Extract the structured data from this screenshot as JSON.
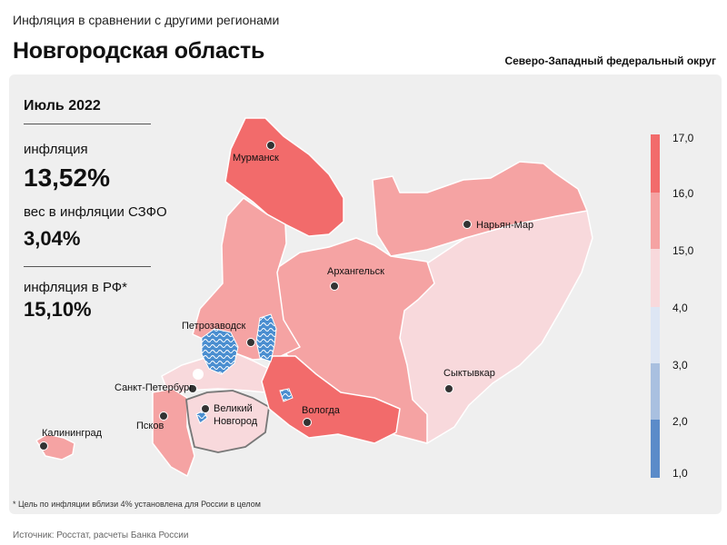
{
  "header": {
    "subtitle": "Инфляция в сравнении с другими регионами",
    "title": "Новгородская область",
    "district": "Северо-Западный федеральный округ"
  },
  "info": {
    "period": "Июль 2022",
    "inflation_label": "инфляция",
    "inflation_value": "13,52%",
    "weight_label": "вес в инфляции СЗФО",
    "weight_value": "3,04%",
    "rf_label": "инфляция в РФ*",
    "rf_value": "15,10%"
  },
  "cities": {
    "murmansk": "Мурманск",
    "naryan_mar": "Нарьян-Мар",
    "arkhangelsk": "Архангельск",
    "petrozavodsk": "Петрозаводск",
    "syktyvkar": "Сыктывкар",
    "spb": "Санкт-Петербург",
    "vnovgorod_1": "Великий",
    "vnovgorod_2": "Новгород",
    "vologda": "Вологда",
    "pskov": "Псков",
    "kaliningrad": "Калининград"
  },
  "legend": {
    "ticks": [
      "17,0",
      "16,0",
      "15,0",
      "4,0",
      "3,0",
      "2,0",
      "1,0"
    ],
    "colors": {
      "very_high": "#f26b6b",
      "high": "#f5a3a3",
      "medium": "#f8d9dc",
      "low": "#dde6f4",
      "lower": "#a9c0e0",
      "lowest": "#5b8bc9"
    }
  },
  "footnote": "* Цель по инфляции вблизи 4% установлена для России в целом",
  "source": "Источник: Росстат, расчеты Банка России"
}
